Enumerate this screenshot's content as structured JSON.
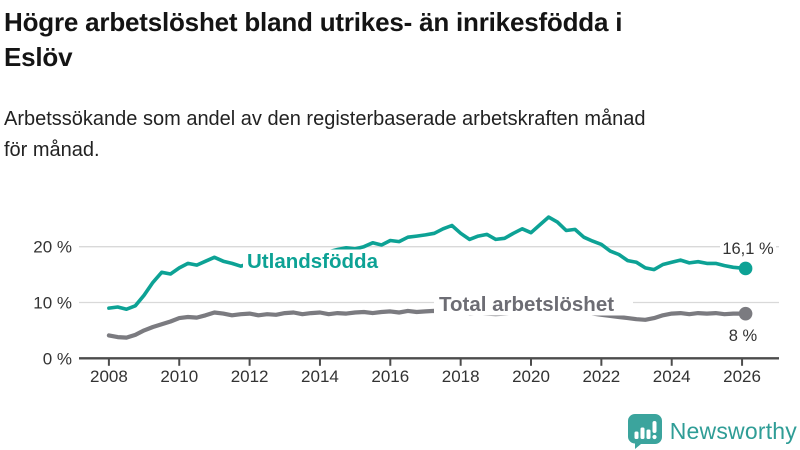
{
  "header": {
    "title_lines": [
      "Högre arbetslöshet bland utrikes- än inrikesfödda i",
      "Eslöv"
    ],
    "subtitle_lines": [
      "Arbetssökande som andel av den registerbaserade arbetskraften månad",
      "för månad."
    ]
  },
  "footer": {
    "brand": "Newsworthy",
    "logo_icon": "bar-chart-speech-bubble-icon"
  },
  "colors": {
    "accent_teal": "#0da295",
    "gray_line": "#7b7b80",
    "gray_label": "#6d6d74",
    "axis": "#4c4c4c",
    "grid": "#d9d9d9",
    "tick_text": "#333333",
    "value_text": "#333333",
    "logo_bubble": "#3ba49d",
    "logo_text": "#2f9d96"
  },
  "chart_data": {
    "type": "line",
    "title": "Högre arbetslöshet bland utrikes- än inrikesfödda i Eslöv",
    "subtitle": "Arbetssökande som andel av den registerbaserade arbetskraften månad för månad.",
    "grid": "horizontal-only",
    "legend_position": "inline-labels",
    "x_axis": {
      "range": [
        2007.15,
        2027.05
      ],
      "ticks": [
        2008,
        2010,
        2012,
        2014,
        2016,
        2018,
        2020,
        2022,
        2024,
        2026
      ],
      "tick_labels": [
        "2008",
        "2010",
        "2012",
        "2014",
        "2016",
        "2018",
        "2020",
        "2022",
        "2024",
        "2026"
      ]
    },
    "y_axis": {
      "range": [
        0,
        27
      ],
      "unit": "%",
      "ticks": [
        {
          "value": 0,
          "label": "0 %"
        },
        {
          "value": 10,
          "label": "10 %"
        },
        {
          "value": 20,
          "label": "20 %"
        }
      ]
    },
    "series": [
      {
        "name": "Utlandsfödda",
        "color": "#0da295",
        "label_color": "#0da295",
        "end_value": 16.1,
        "end_label": "16,1 %",
        "x": [
          2008.0,
          2008.25,
          2008.5,
          2008.75,
          2009.0,
          2009.25,
          2009.5,
          2009.75,
          2010.0,
          2010.25,
          2010.5,
          2010.75,
          2011.0,
          2011.25,
          2011.5,
          2011.75,
          2012.0,
          2012.25,
          2012.5,
          2012.75,
          2013.0,
          2013.25,
          2013.5,
          2013.75,
          2014.0,
          2014.25,
          2014.5,
          2014.75,
          2015.0,
          2015.25,
          2015.5,
          2015.75,
          2016.0,
          2016.25,
          2016.5,
          2016.75,
          2017.0,
          2017.25,
          2017.5,
          2017.75,
          2018.0,
          2018.25,
          2018.5,
          2018.75,
          2019.0,
          2019.25,
          2019.5,
          2019.75,
          2020.0,
          2020.25,
          2020.5,
          2020.75,
          2021.0,
          2021.25,
          2021.5,
          2021.75,
          2022.0,
          2022.25,
          2022.5,
          2022.75,
          2023.0,
          2023.25,
          2023.5,
          2023.75,
          2024.0,
          2024.25,
          2024.5,
          2024.75,
          2025.0,
          2025.25,
          2025.5,
          2025.75,
          2026.1
        ],
        "values": [
          9.0,
          9.2,
          8.8,
          9.4,
          11.3,
          13.6,
          15.4,
          15.1,
          16.2,
          17.0,
          16.7,
          17.4,
          18.1,
          17.4,
          17.0,
          16.5,
          17.0,
          17.1,
          17.3,
          17.5,
          17.7,
          17.9,
          18.2,
          18.4,
          18.7,
          19.1,
          19.5,
          19.8,
          19.6,
          20.0,
          20.7,
          20.3,
          21.1,
          20.9,
          21.7,
          21.9,
          22.1,
          22.4,
          23.2,
          23.8,
          22.4,
          21.3,
          21.9,
          22.2,
          21.3,
          21.5,
          22.4,
          23.2,
          22.5,
          23.9,
          25.3,
          24.4,
          22.9,
          23.1,
          21.7,
          21.0,
          20.4,
          19.2,
          18.6,
          17.5,
          17.2,
          16.2,
          15.9,
          16.8,
          17.2,
          17.6,
          17.1,
          17.3,
          17.0,
          17.0,
          16.6,
          16.3,
          16.1
        ]
      },
      {
        "name": "Total arbetslöshet",
        "color": "#7b7b80",
        "label_color": "#6d6d74",
        "end_value": 8.0,
        "end_label": "8 %",
        "x": [
          2008.0,
          2008.25,
          2008.5,
          2008.75,
          2009.0,
          2009.25,
          2009.5,
          2009.75,
          2010.0,
          2010.25,
          2010.5,
          2010.75,
          2011.0,
          2011.25,
          2011.5,
          2011.75,
          2012.0,
          2012.25,
          2012.5,
          2012.75,
          2013.0,
          2013.25,
          2013.5,
          2013.75,
          2014.0,
          2014.25,
          2014.5,
          2014.75,
          2015.0,
          2015.25,
          2015.5,
          2015.75,
          2016.0,
          2016.25,
          2016.5,
          2016.75,
          2017.0,
          2017.25,
          2017.5,
          2017.75,
          2018.0,
          2018.25,
          2018.5,
          2018.75,
          2019.0,
          2019.25,
          2019.5,
          2019.75,
          2020.0,
          2020.25,
          2020.5,
          2020.75,
          2021.0,
          2021.25,
          2021.5,
          2021.75,
          2022.0,
          2022.25,
          2022.5,
          2022.75,
          2023.0,
          2023.25,
          2023.5,
          2023.75,
          2024.0,
          2024.25,
          2024.5,
          2024.75,
          2025.0,
          2025.25,
          2025.5,
          2025.75,
          2026.1
        ],
        "values": [
          4.1,
          3.8,
          3.7,
          4.2,
          5.0,
          5.6,
          6.1,
          6.6,
          7.2,
          7.4,
          7.3,
          7.7,
          8.2,
          8.0,
          7.7,
          7.9,
          8.0,
          7.7,
          7.9,
          7.8,
          8.1,
          8.2,
          7.9,
          8.1,
          8.2,
          7.9,
          8.1,
          8.0,
          8.2,
          8.3,
          8.1,
          8.3,
          8.4,
          8.2,
          8.5,
          8.3,
          8.4,
          8.5,
          8.4,
          8.3,
          8.2,
          8.0,
          8.1,
          8.0,
          7.9,
          8.0,
          8.1,
          8.3,
          8.6,
          9.1,
          9.2,
          9.0,
          8.8,
          8.6,
          8.3,
          8.0,
          7.8,
          7.6,
          7.4,
          7.2,
          7.0,
          6.9,
          7.2,
          7.7,
          8.0,
          8.1,
          7.9,
          8.1,
          8.0,
          8.1,
          7.9,
          8.0,
          8.0
        ]
      }
    ]
  }
}
